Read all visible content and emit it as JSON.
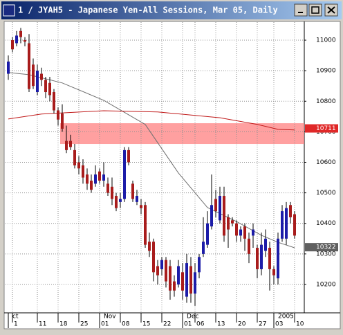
{
  "window_title": "1 / JYAH5 - Japanese Yen-All Sessions, Mar 05, Daily",
  "chart_data": {
    "type": "candlestick",
    "up_color": "#1c1ca8",
    "down_color": "#a81c1c",
    "grid": true,
    "ylim": [
      10107,
      11059
    ],
    "yticks": [
      10200,
      10300,
      10400,
      10500,
      10600,
      10700,
      10800,
      10900,
      11000
    ],
    "categories": [
      null,
      "1",
      null,
      null,
      null,
      null,
      null,
      "11",
      null,
      null,
      null,
      null,
      "18",
      null,
      null,
      null,
      null,
      "25",
      null,
      null,
      null,
      null,
      "01",
      null,
      null,
      null,
      null,
      "08",
      null,
      null,
      null,
      null,
      "15",
      null,
      null,
      null,
      null,
      "22",
      null,
      null,
      null,
      null,
      "01",
      null,
      null,
      "06",
      null,
      null,
      null,
      null,
      "13",
      null,
      null,
      null,
      null,
      "20",
      null,
      null,
      null,
      null,
      "27",
      null,
      null,
      null,
      "03",
      null,
      null,
      null,
      null,
      "10"
    ],
    "months": [
      "ct",
      null,
      null,
      null,
      null,
      null,
      null,
      null,
      null,
      null,
      null,
      null,
      null,
      null,
      null,
      null,
      null,
      null,
      null,
      null,
      null,
      null,
      "Nov",
      null,
      null,
      null,
      null,
      null,
      null,
      null,
      null,
      null,
      null,
      null,
      null,
      null,
      null,
      null,
      null,
      null,
      null,
      null,
      "Dec",
      null,
      null,
      null,
      null,
      null,
      null,
      null,
      null,
      null,
      null,
      null,
      null,
      null,
      null,
      null,
      null,
      null,
      null,
      null,
      null,
      null,
      "2005",
      null,
      null,
      null,
      null,
      null
    ],
    "open": [
      10890,
      11000,
      10990,
      11030,
      11000,
      10990,
      10920,
      10830,
      10890,
      10870,
      10860,
      10830,
      10770,
      10760,
      10670,
      10670,
      10640,
      10600,
      10590,
      10560,
      10540,
      10530,
      10570,
      10540,
      10530,
      10520,
      10490,
      10470,
      10480,
      10640,
      10530,
      10470,
      10460,
      10460,
      10340,
      10340,
      10260,
      10250,
      10280,
      10260,
      10210,
      10200,
      10240,
      10160,
      10260,
      10170,
      10240,
      10300,
      10330,
      10390,
      10480,
      10410,
      10490,
      10420,
      10410,
      10400,
      10360,
      10390,
      10350,
      10360,
      10320,
      10250,
      10310,
      10320,
      10250,
      10220,
      10350,
      10350,
      10460,
      10430
    ],
    "high": [
      10950,
      11010,
      11030,
      11040,
      11010,
      11020,
      10940,
      10920,
      10910,
      10880,
      10880,
      10840,
      10780,
      10790,
      10720,
      10690,
      10660,
      10620,
      10610,
      10580,
      10560,
      10590,
      10580,
      10600,
      10550,
      10550,
      10500,
      10500,
      10650,
      10650,
      10540,
      10510,
      10480,
      10470,
      10370,
      10350,
      10280,
      10290,
      10290,
      10280,
      10230,
      10280,
      10270,
      10300,
      10290,
      10270,
      10300,
      10420,
      10440,
      10560,
      10510,
      10520,
      10520,
      10430,
      10420,
      10410,
      10390,
      10400,
      10370,
      10400,
      10330,
      10370,
      10380,
      10340,
      10260,
      10370,
      10460,
      10470,
      10470,
      10440
    ],
    "low": [
      10870,
      10960,
      10980,
      10990,
      10980,
      10830,
      10840,
      10820,
      10850,
      10810,
      10800,
      10760,
      10720,
      10700,
      10630,
      10640,
      10580,
      10560,
      10530,
      10510,
      10500,
      10520,
      10530,
      10520,
      10490,
      10460,
      10440,
      10450,
      10470,
      10590,
      10470,
      10460,
      10430,
      10320,
      10290,
      10210,
      10200,
      10230,
      10190,
      10150,
      10160,
      10190,
      10150,
      10140,
      10140,
      10130,
      10220,
      10290,
      10320,
      10380,
      10420,
      10400,
      10340,
      10320,
      10390,
      10340,
      10340,
      10310,
      10270,
      10320,
      10220,
      10230,
      10290,
      10180,
      10200,
      10200,
      10340,
      10330,
      10400,
      10350
    ],
    "close": [
      10930,
      10970,
      11015,
      11010,
      10995,
      10840,
      10850,
      10900,
      10870,
      10830,
      10820,
      10770,
      10740,
      10710,
      10640,
      10650,
      10590,
      10580,
      10550,
      10530,
      10510,
      10560,
      10540,
      10560,
      10500,
      10480,
      10450,
      10480,
      10640,
      10600,
      10480,
      10490,
      10450,
      10330,
      10310,
      10240,
      10230,
      10280,
      10210,
      10180,
      10180,
      10260,
      10180,
      10270,
      10170,
      10240,
      10290,
      10340,
      10400,
      10460,
      10440,
      10490,
      10360,
      10380,
      10400,
      10360,
      10380,
      10350,
      10300,
      10380,
      10250,
      10330,
      10350,
      10250,
      10230,
      10350,
      10440,
      10450,
      10420,
      10360
    ],
    "moving_averages": [
      {
        "color": "#707070",
        "x": [
          0,
          5,
          13,
          23,
          33,
          41,
          48,
          55,
          61,
          65,
          69
        ],
        "values": [
          10894,
          10887,
          10860,
          10803,
          10724,
          10565,
          10452,
          10406,
          10361,
          10338,
          10320
        ]
      },
      {
        "color": "#c01818",
        "x": [
          0,
          8,
          23,
          36,
          51,
          60,
          65,
          69
        ],
        "values": [
          10742,
          10758,
          10769,
          10765,
          10746,
          10724,
          10708,
          10706
        ]
      }
    ],
    "zone": {
      "low": 10660,
      "high": 10728,
      "start": 13,
      "color": "#ff8080"
    },
    "price_markers": [
      {
        "value": 10711,
        "color": "#e02828"
      },
      {
        "value": 10322,
        "color": "#606060"
      }
    ]
  }
}
